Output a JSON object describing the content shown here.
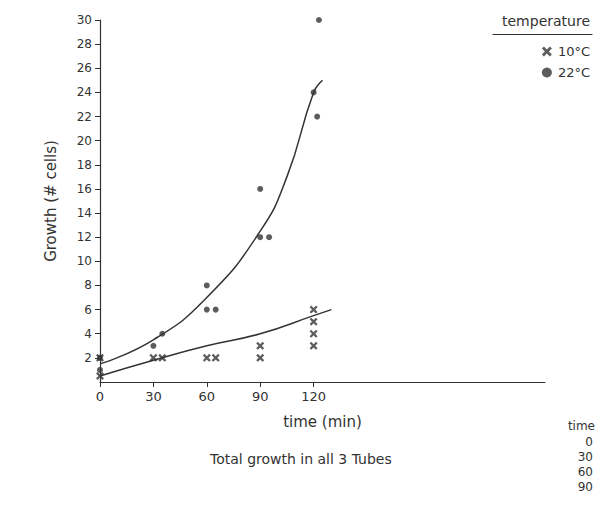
{
  "chart_data": {
    "type": "scatter",
    "x_label": "time (min)",
    "y_label": "Growth (# cells)",
    "xlim": [
      0,
      250
    ],
    "xticks": [
      0,
      30,
      60,
      90,
      120
    ],
    "ylim": [
      0,
      30
    ],
    "yticks": [
      2,
      4,
      6,
      8,
      10,
      12,
      14,
      16,
      18,
      20,
      22,
      24,
      26,
      28,
      30
    ],
    "grid": false,
    "legend": "top-right",
    "annotations": [
      "temperature",
      "Total growth in all 3 Tubes"
    ],
    "series": [
      {
        "name": "10°C",
        "color": "#333333",
        "marker": "x",
        "x": [
          0,
          0,
          30,
          35,
          60,
          65,
          90,
          90,
          120,
          120,
          120,
          120
        ],
        "values": [
          0.5,
          2,
          2,
          2,
          2,
          2,
          2,
          3,
          6,
          5,
          4,
          3
        ],
        "trend": {
          "x": [
            0,
            30,
            60,
            90,
            120,
            130
          ],
          "values": [
            0.5,
            1.8,
            3,
            4,
            5.5,
            6
          ]
        }
      },
      {
        "name": "22°C",
        "color": "#333333",
        "marker": "circle",
        "x": [
          0,
          0,
          30,
          35,
          60,
          65,
          60,
          90,
          90,
          95,
          120,
          122,
          123
        ],
        "values": [
          1,
          2,
          3,
          4,
          6,
          6,
          8,
          12,
          16,
          12,
          24,
          22,
          30
        ],
        "trend": {
          "x": [
            0,
            30,
            60,
            90,
            105,
            120,
            125
          ],
          "values": [
            1.5,
            3.5,
            7,
            12.5,
            17,
            24,
            25
          ]
        }
      }
    ]
  },
  "table": {
    "header": "time",
    "rows": [
      0,
      30,
      60,
      90
    ]
  }
}
